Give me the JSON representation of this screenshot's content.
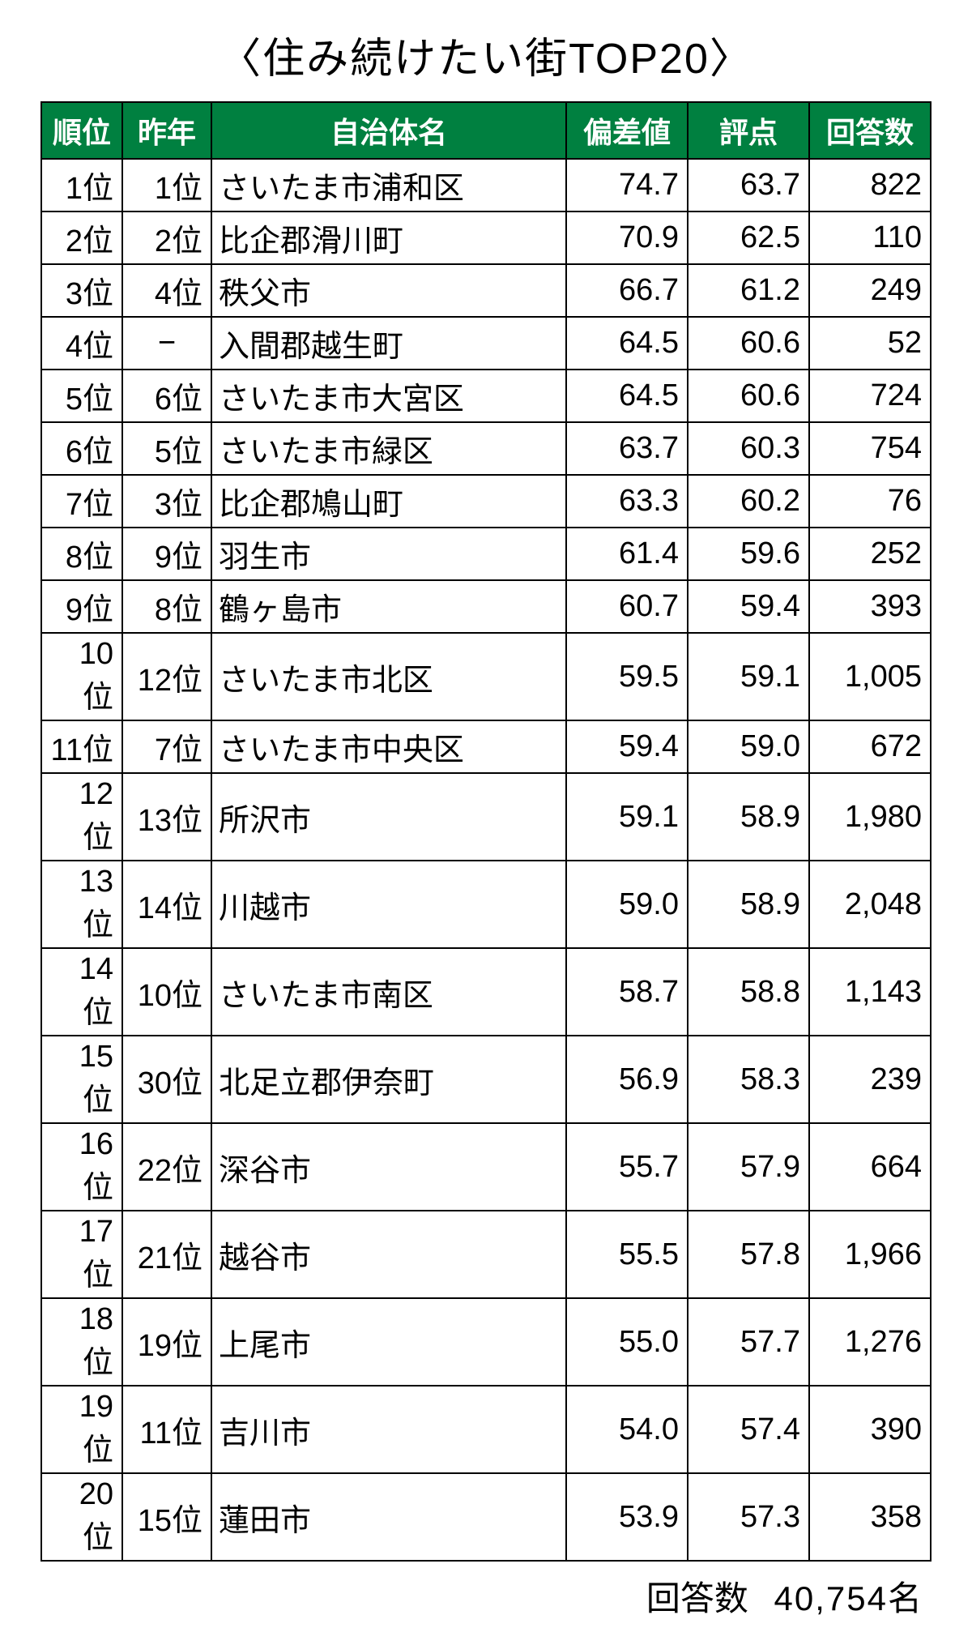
{
  "title": "〈住み続けたい街TOP20〉",
  "columns": [
    "順位",
    "昨年",
    "自治体名",
    "偏差値",
    "評点",
    "回答数"
  ],
  "rows": [
    {
      "rank": "1位",
      "lastyear": "1位",
      "name": "さいたま市浦和区",
      "deviation": "74.7",
      "score": "63.7",
      "responses": "822"
    },
    {
      "rank": "2位",
      "lastyear": "2位",
      "name": "比企郡滑川町",
      "deviation": "70.9",
      "score": "62.5",
      "responses": "110"
    },
    {
      "rank": "3位",
      "lastyear": "4位",
      "name": "秩父市",
      "deviation": "66.7",
      "score": "61.2",
      "responses": "249"
    },
    {
      "rank": "4位",
      "lastyear": "−",
      "name": "入間郡越生町",
      "deviation": "64.5",
      "score": "60.6",
      "responses": "52"
    },
    {
      "rank": "5位",
      "lastyear": "6位",
      "name": "さいたま市大宮区",
      "deviation": "64.5",
      "score": "60.6",
      "responses": "724"
    },
    {
      "rank": "6位",
      "lastyear": "5位",
      "name": "さいたま市緑区",
      "deviation": "63.7",
      "score": "60.3",
      "responses": "754"
    },
    {
      "rank": "7位",
      "lastyear": "3位",
      "name": "比企郡鳩山町",
      "deviation": "63.3",
      "score": "60.2",
      "responses": "76"
    },
    {
      "rank": "8位",
      "lastyear": "9位",
      "name": "羽生市",
      "deviation": "61.4",
      "score": "59.6",
      "responses": "252"
    },
    {
      "rank": "9位",
      "lastyear": "8位",
      "name": "鶴ヶ島市",
      "deviation": "60.7",
      "score": "59.4",
      "responses": "393"
    },
    {
      "rank": "10位",
      "lastyear": "12位",
      "name": "さいたま市北区",
      "deviation": "59.5",
      "score": "59.1",
      "responses": "1,005"
    },
    {
      "rank": "11位",
      "lastyear": "7位",
      "name": "さいたま市中央区",
      "deviation": "59.4",
      "score": "59.0",
      "responses": "672"
    },
    {
      "rank": "12位",
      "lastyear": "13位",
      "name": "所沢市",
      "deviation": "59.1",
      "score": "58.9",
      "responses": "1,980"
    },
    {
      "rank": "13位",
      "lastyear": "14位",
      "name": "川越市",
      "deviation": "59.0",
      "score": "58.9",
      "responses": "2,048"
    },
    {
      "rank": "14位",
      "lastyear": "10位",
      "name": "さいたま市南区",
      "deviation": "58.7",
      "score": "58.8",
      "responses": "1,143"
    },
    {
      "rank": "15位",
      "lastyear": "30位",
      "name": "北足立郡伊奈町",
      "deviation": "56.9",
      "score": "58.3",
      "responses": "239"
    },
    {
      "rank": "16位",
      "lastyear": "22位",
      "name": "深谷市",
      "deviation": "55.7",
      "score": "57.9",
      "responses": "664"
    },
    {
      "rank": "17位",
      "lastyear": "21位",
      "name": "越谷市",
      "deviation": "55.5",
      "score": "57.8",
      "responses": "1,966"
    },
    {
      "rank": "18位",
      "lastyear": "19位",
      "name": "上尾市",
      "deviation": "55.0",
      "score": "57.7",
      "responses": "1,276"
    },
    {
      "rank": "19位",
      "lastyear": "11位",
      "name": "吉川市",
      "deviation": "54.0",
      "score": "57.4",
      "responses": "390"
    },
    {
      "rank": "20位",
      "lastyear": "15位",
      "name": "蓮田市",
      "deviation": "53.9",
      "score": "57.3",
      "responses": "358"
    }
  ],
  "footer": {
    "label": "回答数",
    "value": "40,754名"
  },
  "colors": {
    "header_bg": "#008040",
    "header_text": "#ffffff",
    "border": "#000000",
    "text": "#000000",
    "background": "#ffffff"
  }
}
